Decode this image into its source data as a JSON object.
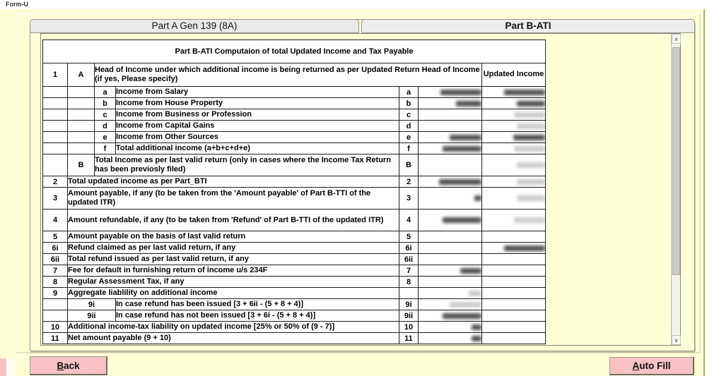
{
  "window": {
    "title": "Form-U"
  },
  "tabs": [
    {
      "label": "Part A Gen 139 (8A)",
      "active": false
    },
    {
      "label": "Part B-ATI",
      "active": true
    }
  ],
  "icons": {
    "scroll_up": "∧",
    "scroll_down": "∨"
  },
  "colors": {
    "bg": "#FFFFD6",
    "yellow": "#FFFF9E",
    "orange": "#F2AC6C",
    "green": "#8FEC8F",
    "pink": "#F8C2C3",
    "grid": "#1f1f1f"
  },
  "buttons": {
    "back_key": "B",
    "back_rest": "ack",
    "autofill_key": "A",
    "autofill_rest": "uto Fill"
  },
  "table": {
    "title": "Part B-ATI Computaion of total Updated Income and Tax Payable",
    "updated_income_header": "Updated Income",
    "header_row": {
      "num": "1",
      "letter": "A",
      "desc": "Head of Income under which additional income is being returned as per Updated Return Head of Income (if yes, Please specify)"
    },
    "rows": [
      {
        "kind": "sub",
        "label": "a",
        "desc": "Income from Salary",
        "rlabel": "a",
        "input": true,
        "vmask": [
          58,
          "dark"
        ],
        "umask": [
          58,
          "dark"
        ]
      },
      {
        "kind": "sub",
        "label": "b",
        "desc": "Income from House Property",
        "rlabel": "b",
        "input": true,
        "vmask": [
          36,
          "dark"
        ],
        "umask": [
          40,
          "dark"
        ]
      },
      {
        "kind": "sub",
        "label": "c",
        "desc": "Income from Business or Profession",
        "rlabel": "c",
        "input": true,
        "umask": [
          44,
          "light"
        ]
      },
      {
        "kind": "sub",
        "label": "d",
        "desc": "Income from Capital Gains",
        "rlabel": "d",
        "input": true,
        "umask": [
          40,
          "light"
        ]
      },
      {
        "kind": "sub",
        "label": "e",
        "desc": "Income from Other Sources",
        "rlabel": "e",
        "input": true,
        "vmask": [
          45,
          "dark"
        ],
        "umask": [
          45,
          "dark"
        ]
      },
      {
        "kind": "sub",
        "label": "f",
        "desc": "Total additional income (a+b+c+d+e)",
        "rlabel": "f",
        "input": false,
        "vmask": [
          55,
          "dark"
        ],
        "umask": [
          44,
          "light"
        ]
      },
      {
        "kind": "letter",
        "label": "B",
        "desc": "Total Income as per last valid return (only in cases where the Income Tax Return has been previosly filed)",
        "rlabel": "B",
        "input": true,
        "tall": true,
        "umask": [
          40,
          "light"
        ]
      },
      {
        "kind": "num",
        "num": "2",
        "desc": "Total updated income as per Part_BTI",
        "rlabel": "2",
        "input": false,
        "vmask": [
          60,
          "dark"
        ],
        "umask": [
          40,
          "light"
        ]
      },
      {
        "kind": "num",
        "num": "3",
        "desc": "Amount payable, if any (to be taken from the 'Amount payable' of Part B-TTI of the updated ITR)",
        "rlabel": "3",
        "input": false,
        "tall": true,
        "vmask": [
          10,
          "dark"
        ],
        "umask": [
          40,
          "light"
        ]
      },
      {
        "kind": "num",
        "num": "4",
        "desc": "Amount refundable, if any (to be taken from 'Refund' of Part B-TTI of the updated ITR)",
        "rlabel": "4",
        "input": false,
        "tall": true,
        "vmask": [
          55,
          "dark"
        ],
        "umask": [
          44,
          "light"
        ]
      },
      {
        "kind": "num",
        "num": "5",
        "desc": "Amount payable on the basis of last valid return",
        "rlabel": "5",
        "input": true
      },
      {
        "kind": "num",
        "num": "6i",
        "desc": "Refund claimed as per last valid return, if any",
        "rlabel": "6i",
        "input": true,
        "umask": [
          58,
          "dark"
        ]
      },
      {
        "kind": "num",
        "num": "6ii",
        "desc": "Total refund issued as per last valid return, if any",
        "rlabel": "6ii",
        "input": true
      },
      {
        "kind": "num",
        "num": "7",
        "desc": "Fee for default in furnishing return of income u/s 234F",
        "rlabel": "7",
        "input": false,
        "vmask": [
          30,
          "dark"
        ]
      },
      {
        "kind": "num",
        "num": "8",
        "desc": "Regular Assessment Tax, if any",
        "rlabel": "8",
        "input": true
      },
      {
        "kind": "section",
        "num": "9",
        "desc": "Aggregate liablility on additional income",
        "rlabel": "",
        "input": false,
        "vmask": [
          18,
          "light"
        ]
      },
      {
        "kind": "subnum",
        "label": "9i",
        "desc": "In case refund has been issued [3 + 6ii - (5 + 8 + 4)]",
        "rlabel": "9i",
        "input": false,
        "vmask": [
          45,
          "light"
        ]
      },
      {
        "kind": "subnum",
        "label": "9ii",
        "desc": "In case refund has not been issued [3 + 6i - (5 + 8 + 4)]",
        "rlabel": "9ii",
        "input": false,
        "vmask": [
          55,
          "dark"
        ]
      },
      {
        "kind": "num",
        "num": "10",
        "desc": "Additional income-tax liability on updated income [25% or 50% of (9 - 7)]",
        "rlabel": "10",
        "input": false,
        "vmask": [
          14,
          "dark"
        ]
      },
      {
        "kind": "num",
        "num": "11",
        "desc": "Net amount payable (9 + 10)",
        "rlabel": "11",
        "input": false,
        "vmask": [
          14,
          "dark"
        ]
      }
    ]
  }
}
